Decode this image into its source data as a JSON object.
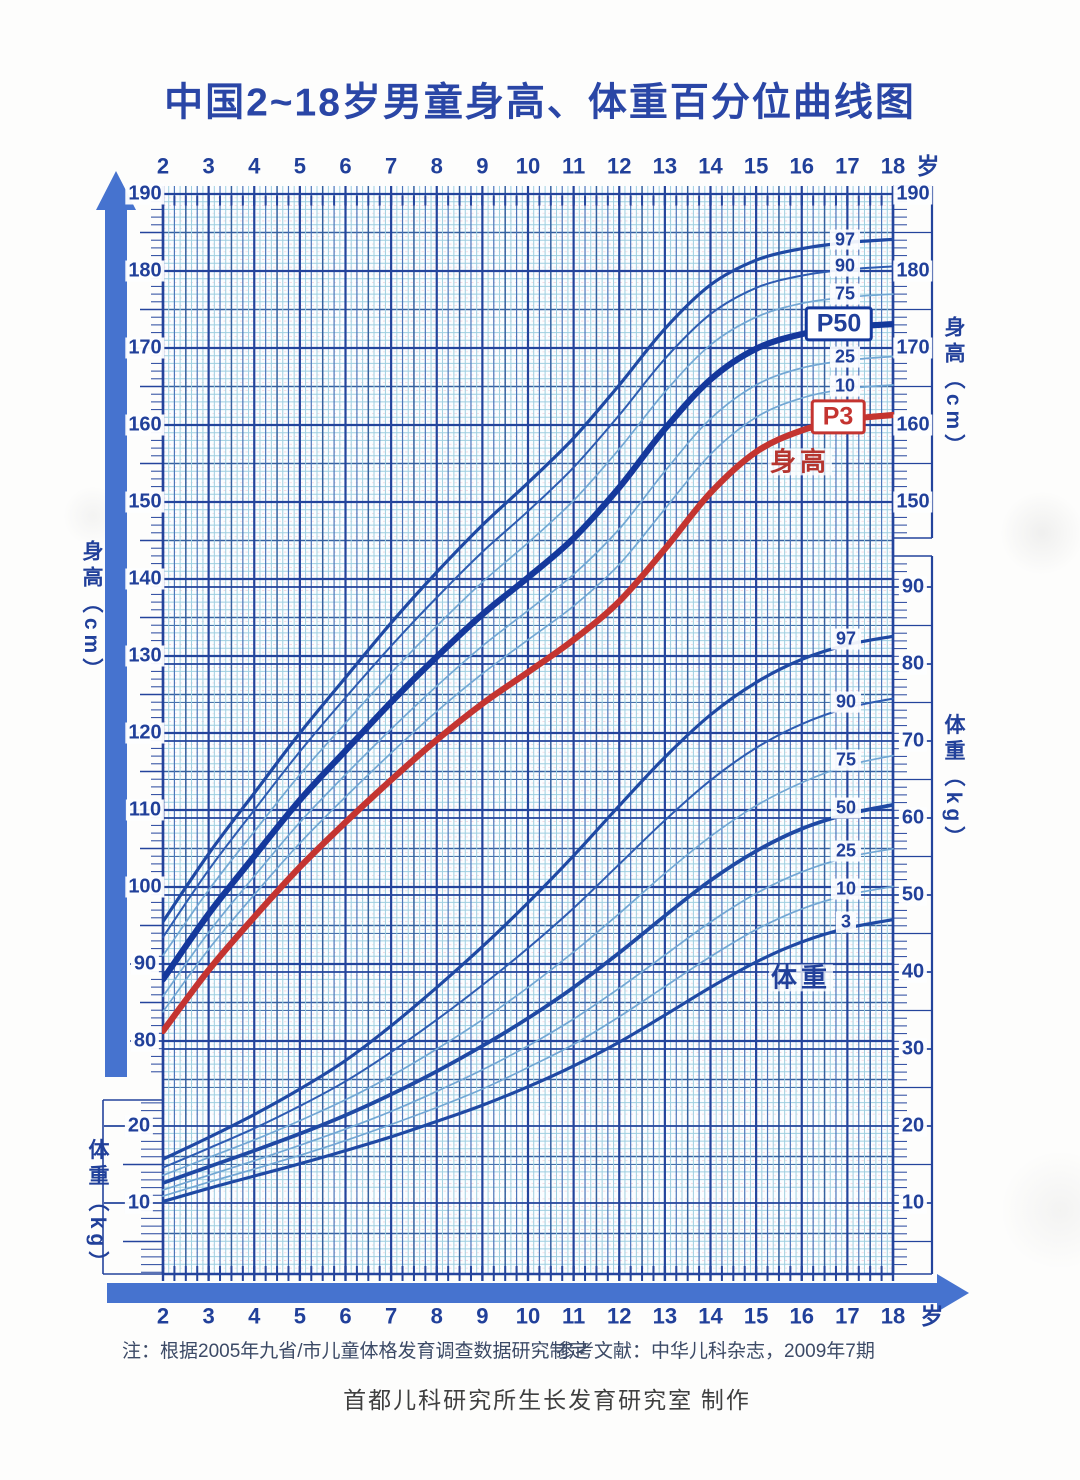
{
  "title": "中国2~18岁男童身高、体重百分位曲线图",
  "annotations": {
    "height_curve_label": "身高",
    "weight_curve_label": "体重"
  },
  "footnote": {
    "note": "注：根据2005年九省/市儿童体格发育调查数据研究制定",
    "reference": "参考文献：中华儿科杂志，2009年7期",
    "credit": "首都儿科研究所生长发育研究室  制作"
  },
  "colors": {
    "text_navy": "#21409a",
    "title_navy": "#2a46a6",
    "curve_bold_blue": "#14389c",
    "curve_red": "#c43430",
    "curve_medium_blue": "#1f49a4",
    "curve_thin_blue": "#2e5cb2",
    "curve_light_blue": "#72a7d4",
    "grid_major": "#24449c",
    "grid_medium": "#35619f",
    "grid_quarter": "#4d76ba",
    "grid_minor_cyan": "#9fcfe0",
    "grid_pink": "#edc0ca",
    "axis_arrow_blue": "#4673cf",
    "label_red": "#b5352f"
  },
  "chart_data": {
    "type": "line",
    "title": "中国2~18岁男童身高、体重百分位曲线图",
    "age_unit": "岁",
    "age_ticks": [
      2,
      3,
      4,
      5,
      6,
      7,
      8,
      9,
      10,
      11,
      12,
      13,
      14,
      15,
      16,
      17,
      18
    ],
    "x_range": [
      2,
      18
    ],
    "grid": true,
    "label_position": "right-of-curves",
    "height_axis": {
      "title": "身高（cm）",
      "unit": "cm",
      "range": [
        80,
        190
      ],
      "left_ticks": [
        190,
        180,
        170,
        160,
        150,
        140,
        130,
        120,
        110,
        100,
        90,
        80
      ],
      "right_ticks": [
        190,
        180,
        170,
        160,
        150
      ]
    },
    "weight_axis": {
      "title": "体重（kg）",
      "unit": "kg",
      "range": [
        10,
        90
      ],
      "left_ticks": [
        20,
        10
      ],
      "right_ticks": [
        90,
        80,
        70,
        60,
        50,
        40,
        30,
        20,
        10
      ]
    },
    "height_series": [
      {
        "label": "97",
        "style": "medium-blue",
        "boxed": false,
        "values": [
          95.5,
          104.3,
          112.2,
          120.0,
          127.2,
          134.3,
          140.9,
          147.0,
          152.5,
          158.3,
          165.2,
          172.5,
          178.2,
          181.4,
          182.9,
          183.7,
          184.1
        ]
      },
      {
        "label": "90",
        "style": "thin-blue",
        "boxed": false,
        "values": [
          93.5,
          102.2,
          110.0,
          117.6,
          124.6,
          131.3,
          137.6,
          143.5,
          148.8,
          154.5,
          161.3,
          168.6,
          174.4,
          177.8,
          179.4,
          180.2,
          180.6
        ]
      },
      {
        "label": "75",
        "style": "light-blue",
        "boxed": false,
        "values": [
          91.1,
          99.6,
          107.2,
          114.6,
          121.3,
          127.8,
          133.9,
          139.6,
          144.7,
          150.2,
          156.9,
          164.3,
          170.4,
          174.0,
          175.8,
          176.6,
          177.0
        ]
      },
      {
        "label": "P50",
        "style": "bold-blue",
        "boxed": true,
        "values": [
          88.0,
          96.5,
          104.0,
          111.3,
          117.7,
          124.0,
          129.9,
          135.4,
          140.2,
          145.3,
          151.9,
          159.5,
          165.9,
          169.9,
          171.8,
          172.7,
          173.1
        ]
      },
      {
        "label": "25",
        "style": "light-blue",
        "boxed": false,
        "values": [
          85.8,
          94.1,
          101.4,
          108.4,
          114.6,
          120.5,
          126.1,
          131.3,
          135.9,
          140.6,
          146.5,
          154.0,
          160.8,
          165.2,
          167.4,
          168.4,
          168.9
        ]
      },
      {
        "label": "10",
        "style": "light-blue",
        "boxed": false,
        "values": [
          83.8,
          91.9,
          99.0,
          105.7,
          111.7,
          117.4,
          122.8,
          127.7,
          132.1,
          136.5,
          141.9,
          149.1,
          156.2,
          161.0,
          163.5,
          164.7,
          165.2
        ]
      },
      {
        "label": "P3",
        "style": "bold-red",
        "boxed": true,
        "values": [
          81.3,
          89.2,
          96.1,
          102.6,
          108.4,
          113.9,
          119.1,
          123.8,
          127.9,
          132.1,
          137.1,
          143.9,
          151.2,
          156.5,
          159.3,
          160.7,
          161.3
        ]
      }
    ],
    "weight_series": [
      {
        "label": "97",
        "style": "medium-blue",
        "boxed": false,
        "values": [
          15.7,
          18.5,
          21.5,
          24.8,
          28.5,
          33.0,
          38.0,
          43.3,
          49.0,
          55.1,
          61.6,
          67.9,
          73.4,
          77.6,
          80.6,
          82.5,
          83.6
        ]
      },
      {
        "label": "90",
        "style": "thin-blue",
        "boxed": false,
        "values": [
          14.6,
          17.1,
          19.7,
          22.6,
          25.8,
          29.6,
          33.8,
          38.3,
          43.1,
          48.3,
          54.0,
          59.7,
          64.9,
          69.1,
          72.2,
          74.3,
          75.5
        ]
      },
      {
        "label": "75",
        "style": "light-blue",
        "boxed": false,
        "values": [
          13.6,
          15.9,
          18.2,
          20.7,
          23.4,
          26.5,
          30.0,
          33.8,
          38.0,
          42.6,
          47.6,
          52.8,
          57.6,
          61.6,
          64.6,
          66.8,
          68.1
        ]
      },
      {
        "label": "50",
        "style": "semibold-blue",
        "boxed": false,
        "values": [
          12.6,
          14.7,
          16.8,
          19.0,
          21.4,
          24.1,
          27.1,
          30.4,
          34.0,
          38.0,
          42.5,
          47.3,
          51.9,
          55.7,
          58.6,
          60.5,
          61.7
        ]
      },
      {
        "label": "25",
        "style": "light-blue",
        "boxed": false,
        "values": [
          11.7,
          13.6,
          15.5,
          17.5,
          19.6,
          21.9,
          24.5,
          27.3,
          30.4,
          33.9,
          37.9,
          42.2,
          46.5,
          50.2,
          53.0,
          54.9,
          56.0
        ]
      },
      {
        "label": "10",
        "style": "light-blue",
        "boxed": false,
        "values": [
          10.9,
          12.7,
          14.4,
          16.2,
          18.1,
          20.2,
          22.4,
          24.8,
          27.6,
          30.6,
          34.2,
          38.1,
          42.0,
          45.5,
          48.2,
          50.0,
          51.1
        ]
      },
      {
        "label": "3",
        "style": "medium-blue",
        "boxed": false,
        "values": [
          10.2,
          11.9,
          13.5,
          15.1,
          16.8,
          18.6,
          20.6,
          22.7,
          25.1,
          27.8,
          30.9,
          34.4,
          38.0,
          41.3,
          43.9,
          45.7,
          46.8
        ]
      }
    ]
  }
}
